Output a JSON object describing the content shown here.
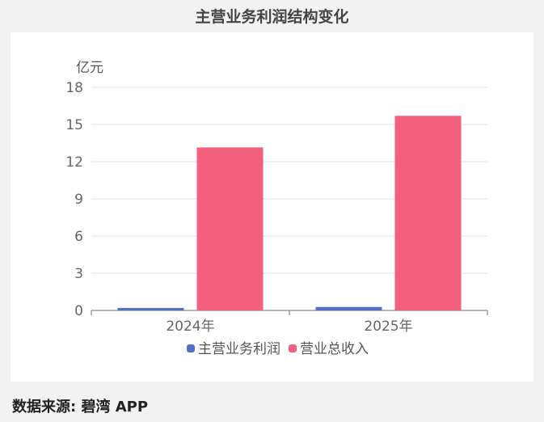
{
  "chart_data": {
    "type": "bar",
    "title": "主营业务利润结构变化",
    "ylabel": "亿元",
    "categories": [
      "2024年",
      "2025年"
    ],
    "series": [
      {
        "name": "主营业务利润",
        "color": "#5470c6",
        "values": [
          0.2,
          0.28
        ]
      },
      {
        "name": "营业总收入",
        "color": "#f2607d",
        "values": [
          13.15,
          15.7
        ]
      }
    ],
    "ylim": [
      0,
      18
    ],
    "yticks": [
      0,
      3,
      6,
      9,
      12,
      15,
      18
    ],
    "grid": true,
    "legend_position": "bottom-center"
  },
  "footer": {
    "label": "数据来源",
    "source": "碧湾 APP"
  }
}
